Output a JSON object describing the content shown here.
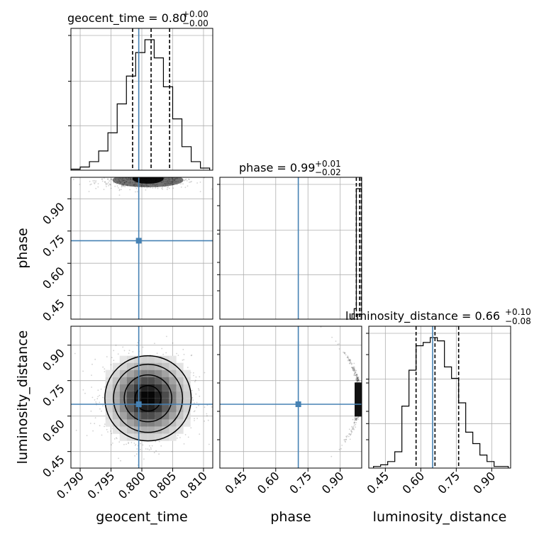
{
  "chart_data": {
    "type": "corner",
    "parameters": [
      "geocent_time",
      "phase",
      "luminosity_distance"
    ],
    "truths": {
      "geocent_time": 0.7995,
      "phase": 0.705,
      "luminosity_distance": 0.65
    },
    "axis_ranges": {
      "geocent_time": [
        0.7885,
        0.8115
      ],
      "phase": [
        0.34,
        1.0
      ],
      "luminosity_distance": [
        0.38,
        0.98
      ]
    },
    "ticks": {
      "geocent_time": {
        "values": [
          0.79,
          0.795,
          0.8,
          0.805,
          0.81
        ],
        "labels": [
          "0.790",
          "0.795",
          "0.800",
          "0.805",
          "0.810"
        ]
      },
      "phase": {
        "values": [
          0.45,
          0.6,
          0.75,
          0.9
        ],
        "labels": [
          "0.45",
          "0.60",
          "0.75",
          "0.90"
        ]
      },
      "luminosity_distance": {
        "values": [
          0.45,
          0.6,
          0.75,
          0.9
        ],
        "labels": [
          "0.45",
          "0.60",
          "0.75",
          "0.90"
        ]
      }
    },
    "marginals": [
      {
        "name": "geocent_time",
        "title_main": "geocent_time = 0.80",
        "title_plus": "+0.00",
        "title_minus": "−0.00",
        "quantiles": [
          0.7985,
          0.8015,
          0.8045
        ],
        "bin_edges": [
          0.7885,
          0.79,
          0.7915,
          0.793,
          0.7945,
          0.796,
          0.7975,
          0.799,
          0.8005,
          0.802,
          0.8035,
          0.805,
          0.8065,
          0.808,
          0.8095,
          0.811
        ],
        "counts": [
          1,
          3,
          8,
          18,
          35,
          62,
          88,
          110,
          122,
          105,
          78,
          48,
          22,
          8,
          2
        ]
      },
      {
        "name": "phase",
        "title_main": "phase = 0.99",
        "title_plus": "+0.01",
        "title_minus": "−0.02",
        "quantiles": [
          0.975,
          0.99,
          0.998
        ],
        "bin_edges": [
          0.955,
          0.965,
          0.975,
          0.985,
          0.995,
          1.0
        ],
        "counts": [
          4,
          8,
          100,
          100,
          100
        ]
      },
      {
        "name": "luminosity_distance",
        "title_main": "luminosity_distance = 0.66",
        "title_plus": "+0.10",
        "title_minus": "−0.08",
        "quantiles": [
          0.58,
          0.66,
          0.76
        ],
        "bin_edges": [
          0.4,
          0.43,
          0.46,
          0.49,
          0.52,
          0.55,
          0.58,
          0.61,
          0.64,
          0.67,
          0.7,
          0.73,
          0.76,
          0.79,
          0.82,
          0.85,
          0.88,
          0.91,
          0.94,
          0.97
        ],
        "counts": [
          1,
          2,
          4,
          10,
          38,
          60,
          75,
          77,
          80,
          78,
          62,
          55,
          40,
          22,
          15,
          8,
          4,
          1,
          1
        ]
      }
    ],
    "joint": [
      {
        "x_param": "geocent_time",
        "y_param": "phase",
        "point_cloud": {
          "x_center": 0.8005,
          "x_spread": 0.004,
          "y_center": 0.985,
          "y_spread": 0.02,
          "n_points": 500
        }
      },
      {
        "x_param": "geocent_time",
        "y_param": "luminosity_distance",
        "point_cloud": {
          "x_center": 0.801,
          "x_spread": 0.0035,
          "y_center": 0.675,
          "y_spread": 0.09,
          "n_points": 1400
        },
        "contour_levels": [
          0.6,
          1.1,
          1.6,
          2.0
        ]
      },
      {
        "x_param": "phase",
        "y_param": "luminosity_distance",
        "point_cloud": {
          "x_center": 0.992,
          "x_spread": 0.01,
          "y_center": 0.68,
          "y_spread": 0.1,
          "n_points": 400
        }
      }
    ],
    "grid": true,
    "truth_color": "#4682b4"
  }
}
